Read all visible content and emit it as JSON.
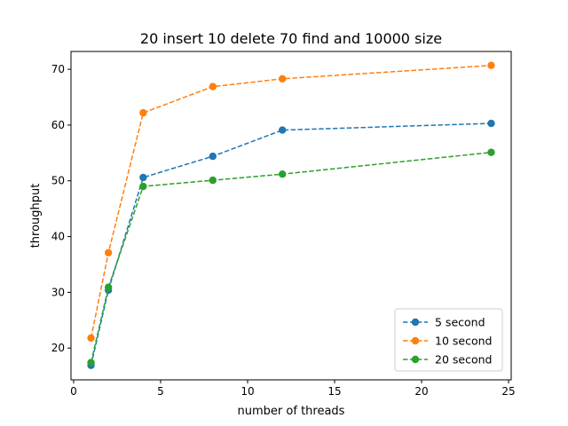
{
  "chart_data": {
    "type": "line",
    "title": "20 insert 10 delete 70 find and 10000 size",
    "xlabel": "number of threads",
    "ylabel": "throughput",
    "xlim": [
      -0.15,
      25.15
    ],
    "ylim": [
      14.3,
      73.2
    ],
    "xticks": [
      0,
      5,
      10,
      15,
      20,
      25
    ],
    "yticks": [
      20,
      30,
      40,
      50,
      60,
      70
    ],
    "grid": false,
    "legend": "lower-right",
    "x": [
      1,
      2,
      4,
      8,
      12,
      24
    ],
    "series": [
      {
        "name": "5 second",
        "color": "#1f77b4",
        "values": [
          16.9,
          30.4,
          50.6,
          54.4,
          59.1,
          60.3
        ]
      },
      {
        "name": "10 second",
        "color": "#ff7f0e",
        "values": [
          21.8,
          37.1,
          62.2,
          66.9,
          68.3,
          70.7
        ]
      },
      {
        "name": "20 second",
        "color": "#2ca02c",
        "values": [
          17.4,
          30.9,
          49.0,
          50.1,
          51.2,
          55.1
        ]
      }
    ]
  }
}
